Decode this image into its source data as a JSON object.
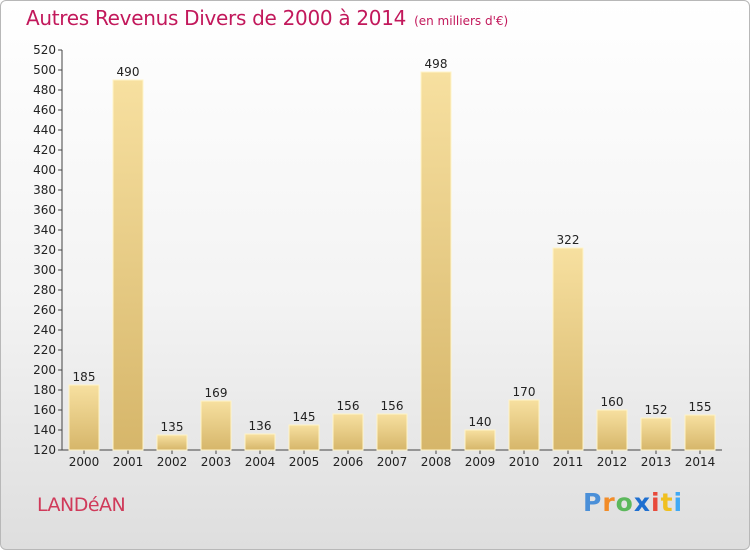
{
  "title": "Autres Revenus Divers de 2000 à 2014",
  "subtitle": "(en milliers d'€)",
  "commune": "LANDéAN",
  "logo": {
    "letters": [
      "P",
      "r",
      "o",
      "x",
      "i",
      "t",
      "i"
    ],
    "colors": [
      "#4a8fd8",
      "#f28c28",
      "#5cb85c",
      "#1e6fd0",
      "#e84a3b",
      "#f0c020",
      "#3fa9f5"
    ]
  },
  "colors": {
    "bar_light": "#f7e0a0",
    "bar_dark": "#d6b66a",
    "bar_edge": "#fff4c8",
    "axis": "#444444"
  },
  "chart_data": {
    "type": "bar",
    "title": "Autres Revenus Divers de 2000 à 2014",
    "subtitle": "(en milliers d'€)",
    "categories": [
      "2000",
      "2001",
      "2002",
      "2003",
      "2004",
      "2005",
      "2006",
      "2007",
      "2008",
      "2009",
      "2010",
      "2011",
      "2012",
      "2013",
      "2014"
    ],
    "values": [
      185,
      490,
      135,
      169,
      136,
      145,
      156,
      156,
      498,
      140,
      170,
      322,
      160,
      152,
      155
    ],
    "ylim": [
      120,
      520
    ],
    "yticks": [
      120,
      140,
      160,
      180,
      200,
      220,
      240,
      260,
      280,
      300,
      320,
      340,
      360,
      380,
      400,
      420,
      440,
      460,
      480,
      500,
      520
    ],
    "grid": false,
    "xlabel": "",
    "ylabel": ""
  }
}
